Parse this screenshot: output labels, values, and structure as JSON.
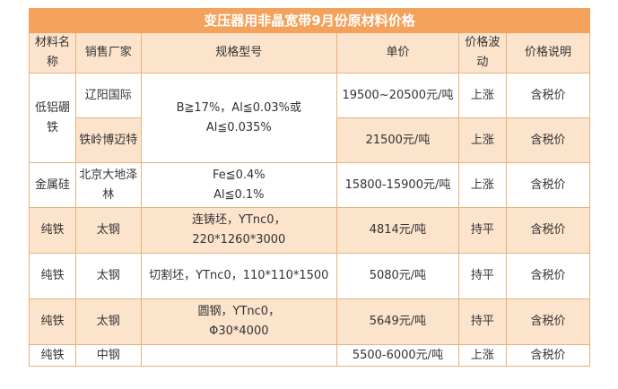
{
  "title": "变压器用非晶宽带9月份原材料价格",
  "headers": {
    "material": "材料名称",
    "maker": "销售厂家",
    "spec": "规格型号",
    "price": "单价",
    "trend": "价格波动",
    "note": "价格说明"
  },
  "rows": {
    "boron_a": {
      "material": "低铝硼铁",
      "maker": "辽阳国际",
      "spec": "B≧17%，Al≦0.03%或Al≦0.035%",
      "price": "19500~20500元/吨",
      "trend": "上涨",
      "note": "含税价"
    },
    "boron_b": {
      "maker": "铁岭博迈特",
      "price": "21500元/吨",
      "trend": "上涨",
      "note": "含税价"
    },
    "silicon": {
      "material": "金属硅",
      "maker": "北京大地泽林",
      "spec_line1": "Fe≦0.4%",
      "spec_line2": "Al≦0.1%",
      "price": "15800-15900元/吨",
      "trend": "上涨",
      "note": "含税价"
    },
    "iron1": {
      "material": "纯铁",
      "maker": "太钢",
      "spec": "连铸坯，YTnc0，220*1260*3000",
      "price": "4814元/吨",
      "trend": "持平",
      "note": "含税价"
    },
    "iron2": {
      "material": "纯铁",
      "maker": "太钢",
      "spec": "切割坯，YTnc0，110*110*1500",
      "price": "5080元/吨",
      "trend": "持平",
      "note": "含税价"
    },
    "iron3": {
      "material": "纯铁",
      "maker": "太钢",
      "spec_line1": "圆钢，YTnc0，",
      "spec_line2": "Φ30*4000",
      "price": "5649元/吨",
      "trend": "持平",
      "note": "含税价"
    },
    "iron4": {
      "material": "纯铁",
      "maker": "中钢",
      "spec": "",
      "price": "5500-6000元/吨",
      "trend": "上涨",
      "note": "含税价"
    }
  },
  "colors": {
    "title_bg": "#f4a15c",
    "title_text": "#ffffff",
    "band_bg": "#fce3cc",
    "border": "#e8b27c",
    "text": "#333333"
  }
}
